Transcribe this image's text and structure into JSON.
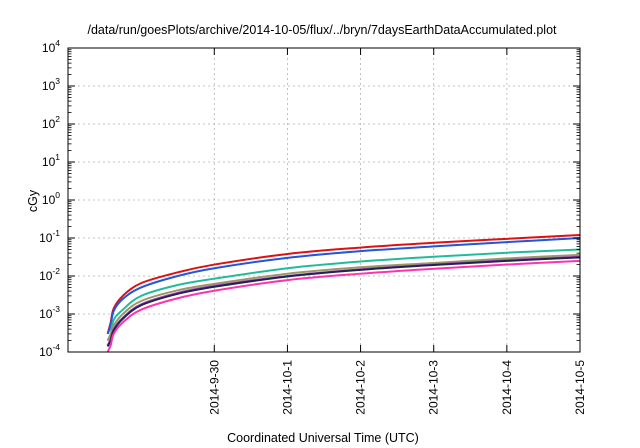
{
  "chart_data": {
    "type": "line",
    "title": "/data/run/goesPlots/archive/2014-10-05/flux/../bryn/7daysEarthDataAccumulated.plot",
    "xlabel": "Coordinated Universal Time (UTC)",
    "ylabel": "cGy",
    "y_scale": "log",
    "ylim": [
      0.0001,
      10000
    ],
    "xlim": [
      "2014-09-28",
      "2014-10-05"
    ],
    "grid": true,
    "legend": "none",
    "x_ticks": [
      "2014-9-30",
      "2014-10-1",
      "2014-10-2",
      "2014-10-3",
      "2014-10-4",
      "2014-10-5"
    ],
    "y_ticks": [
      {
        "base": "10",
        "exp": "-4",
        "value": 0.0001
      },
      {
        "base": "10",
        "exp": "-3",
        "value": 0.001
      },
      {
        "base": "10",
        "exp": "-2",
        "value": 0.01
      },
      {
        "base": "10",
        "exp": "-1",
        "value": 0.1
      },
      {
        "base": "10",
        "exp": "0",
        "value": 1
      },
      {
        "base": "10",
        "exp": "1",
        "value": 10
      },
      {
        "base": "10",
        "exp": "2",
        "value": 100
      },
      {
        "base": "10",
        "exp": "3",
        "value": 1000
      },
      {
        "base": "10",
        "exp": "4",
        "value": 10000
      }
    ],
    "x": [
      "2014-09-28 13:00",
      "2014-09-28 14:00",
      "2014-09-28 15:00",
      "2014-09-28 18:00",
      "2014-09-29 00:00",
      "2014-09-29 12:00",
      "2014-09-30 00:00",
      "2014-10-01 00:00",
      "2014-10-02 00:00",
      "2014-10-03 00:00",
      "2014-10-04 00:00",
      "2014-10-05 00:00"
    ],
    "series": [
      {
        "color": "#dd1111",
        "values": [
          0.0003,
          0.0006,
          0.0014,
          0.003,
          0.0065,
          0.0125,
          0.02,
          0.038,
          0.056,
          0.075,
          0.095,
          0.12
        ]
      },
      {
        "color": "#2255dd",
        "values": [
          0.0003,
          0.0005,
          0.0012,
          0.0025,
          0.005,
          0.01,
          0.016,
          0.03,
          0.045,
          0.06,
          0.078,
          0.1
        ]
      },
      {
        "color": "#22bb99",
        "values": [
          0.0002,
          0.0003,
          0.0007,
          0.0013,
          0.003,
          0.0058,
          0.0085,
          0.016,
          0.024,
          0.032,
          0.041,
          0.05
        ]
      },
      {
        "color": "#999966",
        "values": [
          0.0002,
          0.0003,
          0.0005,
          0.001,
          0.0022,
          0.0042,
          0.0062,
          0.0115,
          0.017,
          0.022,
          0.029,
          0.036
        ]
      },
      {
        "color": "#aa44bb",
        "values": [
          0.00015,
          0.00022,
          0.0004,
          0.0008,
          0.0018,
          0.0036,
          0.0055,
          0.01,
          0.015,
          0.02,
          0.026,
          0.032
        ]
      },
      {
        "color": "#222255",
        "values": [
          0.00014,
          0.0002,
          0.00037,
          0.00075,
          0.0017,
          0.0034,
          0.0052,
          0.0097,
          0.0145,
          0.0195,
          0.025,
          0.031
        ]
      },
      {
        "color": "#ff33aa",
        "values": [
          0.0001,
          0.00015,
          0.0003,
          0.0006,
          0.0013,
          0.0026,
          0.0041,
          0.0078,
          0.0115,
          0.0155,
          0.02,
          0.025
        ]
      }
    ]
  }
}
